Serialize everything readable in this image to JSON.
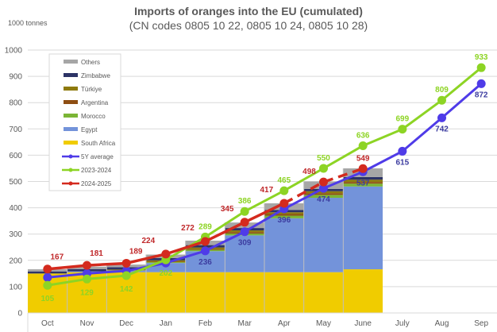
{
  "chart_data": {
    "type": "bar",
    "subtype": "stacked-bar-with-lines",
    "title": "Imports of oranges into the EU (cumulated)",
    "subtitle": "(CN codes 0805 10 22, 0805 10 24, 0805 10 28)",
    "ylabel": "1000 tonnes",
    "xlabel": "",
    "ylim": [
      0,
      1000
    ],
    "yticks": [
      0,
      100,
      200,
      300,
      400,
      500,
      600,
      700,
      800,
      900,
      1000
    ],
    "grid": true,
    "legend_position": "top-left",
    "categories": [
      "Oct",
      "Nov",
      "Dec",
      "Jan",
      "Feb",
      "Mar",
      "Apr",
      "May",
      "June",
      "July",
      "Aug",
      "Sep"
    ],
    "bar_series": [
      {
        "name": "South Africa",
        "color": "#F0CC00",
        "values": [
          150,
          155,
          155,
          155,
          155,
          155,
          155,
          155,
          166
        ]
      },
      {
        "name": "Egypt",
        "color": "#7393DA",
        "values": [
          0,
          3,
          6,
          35,
          80,
          140,
          205,
          283,
          315
        ]
      },
      {
        "name": "Morocco",
        "color": "#7BB536",
        "values": [
          0,
          0,
          1,
          3,
          5,
          7,
          10,
          11,
          11
        ]
      },
      {
        "name": "Argentina",
        "color": "#8E4E12",
        "values": [
          0,
          0,
          1,
          2,
          3,
          5,
          6,
          6,
          6
        ]
      },
      {
        "name": "Türkiye",
        "color": "#8E7A0E",
        "values": [
          0,
          0,
          2,
          5,
          6,
          7,
          7,
          8,
          9
        ]
      },
      {
        "name": "Zimbabwe",
        "color": "#2C3366",
        "values": [
          8,
          9,
          9,
          9,
          9,
          9,
          9,
          9,
          10
        ]
      },
      {
        "name": "Others",
        "color": "#A6A6A6",
        "values": [
          8,
          9,
          10,
          13,
          17,
          21,
          25,
          28,
          33
        ]
      }
    ],
    "line_series": [
      {
        "name": "5Y  average",
        "color": "#4F3BE8",
        "dashed": false,
        "label_color": "#3C3CA0",
        "values": [
          135,
          150,
          160,
          190,
          236,
          309,
          396,
          474,
          537,
          615,
          742,
          872
        ],
        "labels": [
          null,
          null,
          null,
          null,
          "236",
          "309",
          "396",
          "474",
          "537",
          "615",
          "742",
          "872"
        ]
      },
      {
        "name": "2023-2024",
        "color": "#8DD424",
        "dashed": false,
        "label_color": "#8DD424",
        "values": [
          105,
          129,
          142,
          202,
          289,
          386,
          465,
          550,
          636,
          699,
          809,
          933
        ],
        "labels": [
          "105",
          "129",
          "142",
          "202",
          "289",
          "386",
          "465",
          "550",
          "636",
          "699",
          "809",
          "933"
        ]
      },
      {
        "name": "2024-2025",
        "color": "#D42A1E",
        "dashed_from_index": 6,
        "label_color": "#C0282A",
        "values": [
          167,
          181,
          189,
          224,
          272,
          345,
          417,
          498,
          549
        ],
        "labels": [
          "167",
          "181",
          "189",
          "224",
          "272",
          "345",
          "417",
          "498",
          "549"
        ]
      }
    ]
  }
}
